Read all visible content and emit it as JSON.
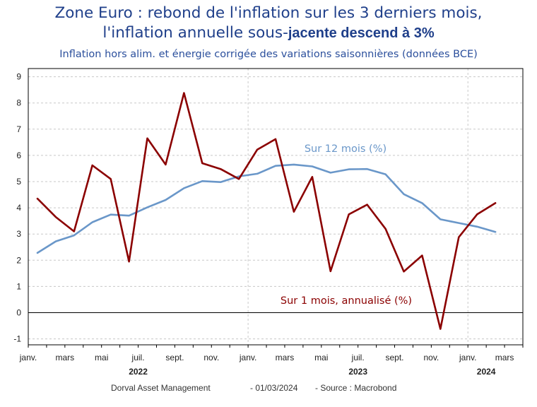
{
  "title_line1": "Zone Euro : rebond de l'inflation sur les 3 derniers mois,",
  "title_line2_a": "l'inflation annuelle sous-",
  "title_line2_b": "jacente descend à 3%",
  "subtitle": "Inflation hors alim. et énergie corrigée des variations saisonnières (données BCE)",
  "footer": {
    "author": "Dorval Asset Management",
    "date": "- 01/03/2024",
    "source": "-   Source : Macrobond"
  },
  "chart_data": {
    "type": "line",
    "title": "Zone Euro : rebond de l'inflation sur les 3 derniers mois, l'inflation annuelle sous-jacente descend à 3%",
    "subtitle": "Inflation hors alim. et énergie corrigée des variations saisonnières (données BCE)",
    "xlabel": "",
    "ylabel": "",
    "ylim": [
      -1.3,
      9.2
    ],
    "yticks": [
      -1,
      0,
      1,
      2,
      3,
      4,
      5,
      6,
      7,
      8,
      9
    ],
    "grid": true,
    "x_tick_labels": [
      "janv.",
      "mars",
      "mai",
      "juil.",
      "sept.",
      "nov.",
      "janv.",
      "mars",
      "mai",
      "juil.",
      "sept.",
      "nov.",
      "janv.",
      "mars"
    ],
    "year_labels": [
      "2022",
      "2023",
      "2024"
    ],
    "x": [
      "2022-01",
      "2022-02",
      "2022-03",
      "2022-04",
      "2022-05",
      "2022-06",
      "2022-07",
      "2022-08",
      "2022-09",
      "2022-10",
      "2022-11",
      "2022-12",
      "2023-01",
      "2023-02",
      "2023-03",
      "2023-04",
      "2023-05",
      "2023-06",
      "2023-07",
      "2023-08",
      "2023-09",
      "2023-10",
      "2023-11",
      "2023-12",
      "2024-01",
      "2024-02"
    ],
    "series": [
      {
        "name": "Sur 1 mois, annualisé (%)",
        "color": "#8b0000",
        "values": [
          4.35,
          3.65,
          3.1,
          5.62,
          5.1,
          1.95,
          6.65,
          5.65,
          8.38,
          5.7,
          5.48,
          5.1,
          6.22,
          6.62,
          3.85,
          5.18,
          1.58,
          3.75,
          4.12,
          3.2,
          1.57,
          2.18,
          -0.62,
          2.88,
          3.75,
          4.18
        ]
      },
      {
        "name": "Sur 12 mois (%)",
        "color": "#6a97c9",
        "values": [
          2.28,
          2.72,
          2.95,
          3.45,
          3.74,
          3.7,
          4.02,
          4.3,
          4.75,
          5.02,
          4.98,
          5.2,
          5.3,
          5.6,
          5.65,
          5.58,
          5.34,
          5.47,
          5.48,
          5.28,
          4.52,
          4.18,
          3.56,
          3.42,
          3.28,
          3.08
        ]
      }
    ]
  }
}
